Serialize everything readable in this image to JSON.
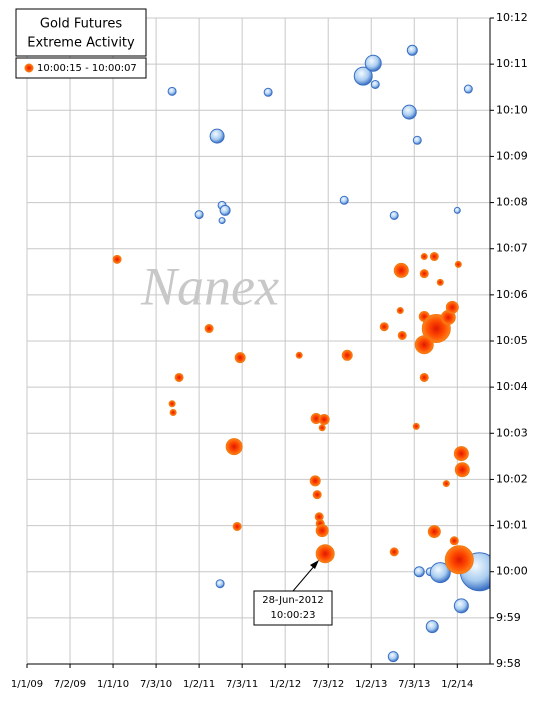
{
  "chart_data": {
    "type": "bubble",
    "title": "Gold Futures",
    "subtitle": "Extreme Activity",
    "watermark": "Nanex",
    "annotation": {
      "lines": [
        "28-Jun-2012",
        "10:00:23"
      ],
      "x": 2012.49,
      "y": 600.38
    },
    "xlim": [
      2009,
      2014.38
    ],
    "ylim": [
      598,
      612
    ],
    "grid": true,
    "legend": "upper left",
    "xticks": [
      {
        "value": 2009,
        "label": "1/1/09"
      },
      {
        "value": 2009.5,
        "label": "7/2/09"
      },
      {
        "value": 2010,
        "label": "1/1/10"
      },
      {
        "value": 2010.5,
        "label": "7/3/10"
      },
      {
        "value": 2011,
        "label": "1/2/11"
      },
      {
        "value": 2011.5,
        "label": "7/3/11"
      },
      {
        "value": 2012,
        "label": "1/2/12"
      },
      {
        "value": 2012.5,
        "label": "7/3/12"
      },
      {
        "value": 2013,
        "label": "1/2/13"
      },
      {
        "value": 2013.5,
        "label": "7/3/13"
      },
      {
        "value": 2014,
        "label": "1/2/14"
      }
    ],
    "yticks": [
      {
        "value": 598,
        "label": "9:58"
      },
      {
        "value": 599,
        "label": "9:59"
      },
      {
        "value": 600,
        "label": "10:00"
      },
      {
        "value": 601,
        "label": "10:01"
      },
      {
        "value": 602,
        "label": "10:02"
      },
      {
        "value": 603,
        "label": "10:03"
      },
      {
        "value": 604,
        "label": "10:04"
      },
      {
        "value": 605,
        "label": "10:05"
      },
      {
        "value": 606,
        "label": "10:06"
      },
      {
        "value": 607,
        "label": "10:07"
      },
      {
        "value": 608,
        "label": "10:08"
      },
      {
        "value": 609,
        "label": "10:09"
      },
      {
        "value": 610,
        "label": "10:10"
      },
      {
        "value": 611,
        "label": "10:11"
      },
      {
        "value": 612,
        "label": "10:12"
      }
    ],
    "series": [
      {
        "color": "#3a6fc4",
        "x": [
          2010.686,
          2011.802,
          2011.209,
          2012.907,
          2013.023,
          2013.047,
          2013.477,
          2013.442,
          2013.535,
          2014.128,
          2011.0,
          2011.267,
          2011.302,
          2011.267,
          2012.686,
          2013.267,
          2014.0,
          2011.244,
          2013.558,
          2013.686,
          2013.802,
          2014.256,
          2014.047,
          2013.709,
          2013.256
        ],
        "values": [
          610.41,
          610.39,
          609.44,
          610.74,
          611.02,
          610.56,
          611.3,
          609.96,
          609.35,
          610.46,
          607.74,
          607.94,
          607.83,
          607.61,
          608.05,
          607.72,
          607.83,
          599.74,
          600.0,
          600.0,
          599.98,
          600.0,
          599.26,
          598.81,
          598.16
        ],
        "sizes": [
          4,
          4,
          7,
          9,
          8,
          4,
          5,
          7,
          4,
          4,
          4,
          4,
          5,
          3,
          4,
          4,
          3,
          4,
          5,
          4,
          10,
          19,
          7,
          6,
          5
        ]
      },
      {
        "name": "10:00:15 - 10:00:07",
        "color": "#f07a10",
        "x": [
          2010.047,
          2010.686,
          2010.698,
          2010.767,
          2011.116,
          2011.477,
          2011.407,
          2011.442,
          2012.163,
          2012.721,
          2012.36,
          2012.453,
          2012.43,
          2012.349,
          2012.372,
          2012.395,
          2012.407,
          2012.43,
          2012.465,
          2013.151,
          2013.349,
          2013.337,
          2013.36,
          2013.616,
          2013.733,
          2013.616,
          2013.802,
          2014.012,
          2013.616,
          2013.756,
          2013.616,
          2013.895,
          2013.942,
          2013.616,
          2013.523,
          2014.047,
          2014.058,
          2013.872,
          2013.267,
          2013.733,
          2013.965,
          2014.023
        ],
        "values": [
          606.77,
          603.64,
          603.45,
          604.21,
          605.27,
          604.64,
          602.71,
          600.98,
          604.69,
          604.69,
          603.32,
          603.3,
          603.12,
          601.97,
          601.67,
          601.19,
          601.04,
          600.89,
          600.39,
          605.31,
          606.53,
          605.66,
          605.12,
          606.83,
          606.83,
          606.46,
          606.27,
          606.66,
          605.53,
          605.27,
          604.92,
          605.51,
          605.73,
          604.21,
          603.15,
          602.56,
          602.21,
          601.91,
          600.43,
          600.87,
          600.67,
          600.26
        ],
        "sizes": [
          4,
          3,
          3,
          4,
          4,
          5,
          8,
          4,
          3,
          5,
          5,
          5,
          3,
          5,
          4,
          4,
          4,
          6,
          9,
          4,
          7,
          3,
          4,
          3,
          4,
          4,
          3,
          3,
          5,
          14,
          9,
          7,
          6,
          4,
          3,
          7,
          7,
          3,
          4,
          6,
          4,
          14
        ]
      }
    ]
  }
}
